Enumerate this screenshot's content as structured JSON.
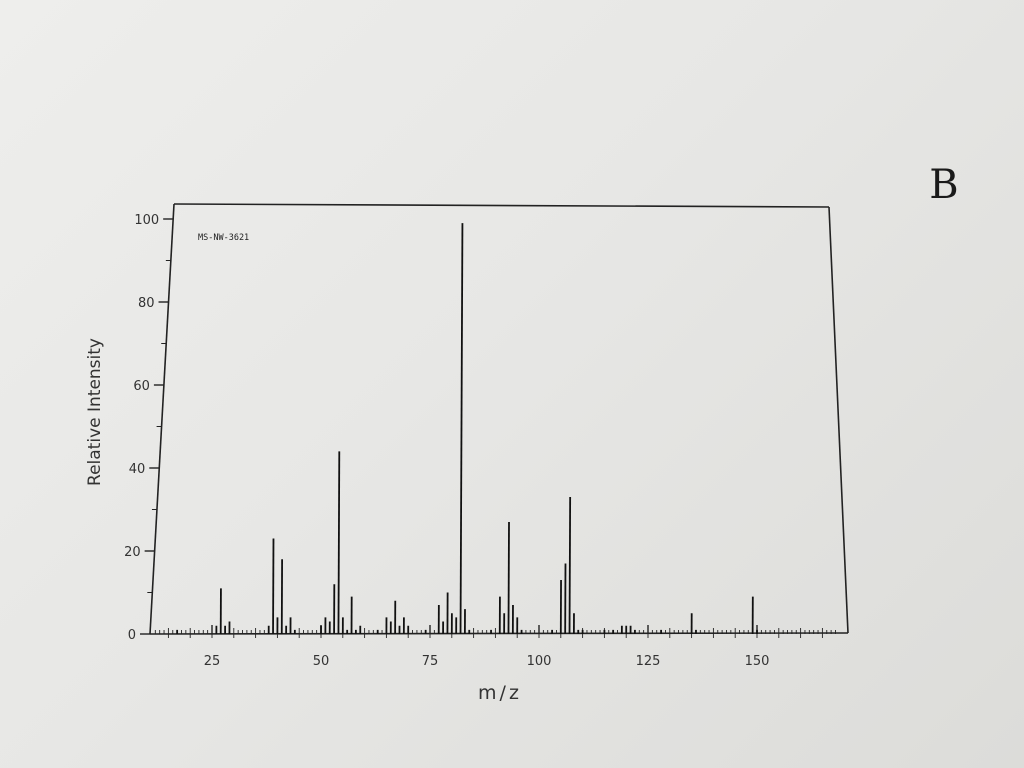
{
  "corner_mark": "B",
  "chart_data": {
    "type": "bar",
    "title": "",
    "annotation": "MS-NW-3621",
    "xlabel": "m/z",
    "ylabel": "Relative Intensity",
    "xlim": [
      10,
      170
    ],
    "ylim": [
      0,
      100
    ],
    "xticks": [
      25,
      50,
      75,
      100,
      125,
      150
    ],
    "yticks": [
      0,
      20,
      40,
      60,
      80,
      100
    ],
    "grid": false,
    "series": [
      {
        "x": [
          17,
          26,
          27,
          28,
          29,
          38,
          39,
          40,
          41,
          42,
          43,
          44,
          50,
          51,
          52,
          53,
          54,
          55,
          56,
          57,
          58,
          59,
          63,
          65,
          66,
          67,
          68,
          69,
          70,
          74,
          77,
          78,
          79,
          80,
          81,
          82,
          83,
          84,
          89,
          91,
          92,
          93,
          94,
          95,
          96,
          103,
          105,
          106,
          107,
          108,
          109,
          110,
          115,
          117,
          119,
          120,
          121,
          122,
          128,
          135,
          136,
          149,
          150
        ],
        "values": [
          1,
          2,
          11,
          2,
          3,
          2,
          23,
          4,
          18,
          2,
          4,
          1,
          2,
          4,
          3,
          12,
          44,
          4,
          1,
          9,
          1,
          2,
          1,
          4,
          3,
          8,
          2,
          4,
          2,
          1,
          7,
          3,
          10,
          5,
          4,
          99,
          6,
          1,
          1,
          9,
          5,
          27,
          7,
          4,
          1,
          1,
          13,
          17,
          33,
          5,
          1,
          1,
          1,
          1,
          2,
          2,
          2,
          1,
          1,
          5,
          1,
          9,
          1
        ]
      }
    ]
  }
}
